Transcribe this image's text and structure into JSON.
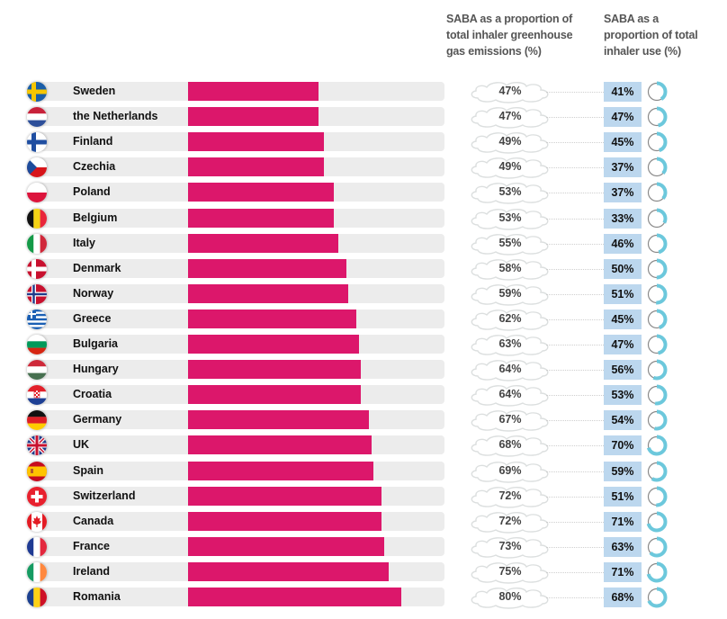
{
  "chart_data": {
    "type": "bar",
    "title": "",
    "headers": {
      "emissions": "SABA as a proportion of total inhaler greenhouse gas emissions (%)",
      "use": "SABA as a proportion of total inhaler use (%)"
    },
    "categories": [
      "Sweden",
      "the Netherlands",
      "Finland",
      "Czechia",
      "Poland",
      "Belgium",
      "Italy",
      "Denmark",
      "Norway",
      "Greece",
      "Bulgaria",
      "Hungary",
      "Croatia",
      "Germany",
      "UK",
      "Spain",
      "Switzerland",
      "Canada",
      "France",
      "Ireland",
      "Romania"
    ],
    "series": [
      {
        "name": "SABA as a proportion of total inhaler greenhouse gas emissions (%)",
        "values": [
          47,
          47,
          49,
          49,
          53,
          53,
          55,
          58,
          59,
          62,
          63,
          64,
          64,
          67,
          68,
          69,
          72,
          72,
          73,
          75,
          80
        ]
      },
      {
        "name": "SABA as a proportion of total inhaler use (%)",
        "values": [
          41,
          47,
          45,
          37,
          37,
          33,
          46,
          50,
          51,
          45,
          47,
          56,
          53,
          54,
          70,
          59,
          51,
          71,
          63,
          71,
          68
        ]
      }
    ],
    "xlabel": "",
    "ylabel": "",
    "ylim": [
      0,
      100
    ],
    "grid": false,
    "legend": "none"
  },
  "header": {
    "col_emissions_line1": "SABA as a proportion of",
    "col_emissions_line2": "total inhaler greenhouse",
    "col_emissions_line3": "gas emissions (%)",
    "col_use_line1": "SABA as a",
    "col_use_line2": "proportion of total",
    "col_use_line3": "inhaler use (%)"
  },
  "rows": [
    {
      "country": "Sweden",
      "flag": "sweden-flag",
      "emissions": "47%",
      "use": "41%"
    },
    {
      "country": "the Netherlands",
      "flag": "netherlands-flag",
      "emissions": "47%",
      "use": "47%"
    },
    {
      "country": "Finland",
      "flag": "finland-flag",
      "emissions": "49%",
      "use": "45%"
    },
    {
      "country": "Czechia",
      "flag": "czechia-flag",
      "emissions": "49%",
      "use": "37%"
    },
    {
      "country": "Poland",
      "flag": "poland-flag",
      "emissions": "53%",
      "use": "37%"
    },
    {
      "country": "Belgium",
      "flag": "belgium-flag",
      "emissions": "53%",
      "use": "33%"
    },
    {
      "country": "Italy",
      "flag": "italy-flag",
      "emissions": "55%",
      "use": "46%"
    },
    {
      "country": "Denmark",
      "flag": "denmark-flag",
      "emissions": "58%",
      "use": "50%"
    },
    {
      "country": "Norway",
      "flag": "norway-flag",
      "emissions": "59%",
      "use": "51%"
    },
    {
      "country": "Greece",
      "flag": "greece-flag",
      "emissions": "62%",
      "use": "45%"
    },
    {
      "country": "Bulgaria",
      "flag": "bulgaria-flag",
      "emissions": "63%",
      "use": "47%"
    },
    {
      "country": "Hungary",
      "flag": "hungary-flag",
      "emissions": "64%",
      "use": "56%"
    },
    {
      "country": "Croatia",
      "flag": "croatia-flag",
      "emissions": "64%",
      "use": "53%"
    },
    {
      "country": "Germany",
      "flag": "germany-flag",
      "emissions": "67%",
      "use": "54%"
    },
    {
      "country": "UK",
      "flag": "uk-flag",
      "emissions": "68%",
      "use": "70%"
    },
    {
      "country": "Spain",
      "flag": "spain-flag",
      "emissions": "69%",
      "use": "59%"
    },
    {
      "country": "Switzerland",
      "flag": "switzerland-flag",
      "emissions": "72%",
      "use": "51%"
    },
    {
      "country": "Canada",
      "flag": "canada-flag",
      "emissions": "72%",
      "use": "71%"
    },
    {
      "country": "France",
      "flag": "france-flag",
      "emissions": "73%",
      "use": "63%"
    },
    {
      "country": "Ireland",
      "flag": "ireland-flag",
      "emissions": "75%",
      "use": "71%"
    },
    {
      "country": "Romania",
      "flag": "romania-flag",
      "emissions": "80%",
      "use": "68%"
    }
  ],
  "colors": {
    "bar": "#dc176b",
    "track": "#ececec",
    "use_box": "#bcd7ee",
    "donut_fill": "#6cc8dc",
    "donut_rest": "#8a8a8a",
    "cloud_outline": "#d8dcdc"
  }
}
